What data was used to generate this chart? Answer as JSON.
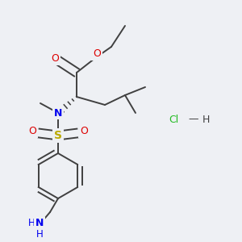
{
  "bg_color": "#eef0f4",
  "bond_color": "#404040",
  "bond_width": 1.4,
  "dbo": 0.018,
  "atom_colors": {
    "O": "#dd0000",
    "N": "#0000ee",
    "S": "#bbaa00",
    "Cl": "#22bb22",
    "H": "#22bb22",
    "C": "#404040"
  },
  "fs": 8.5,
  "fs_small": 7.5
}
